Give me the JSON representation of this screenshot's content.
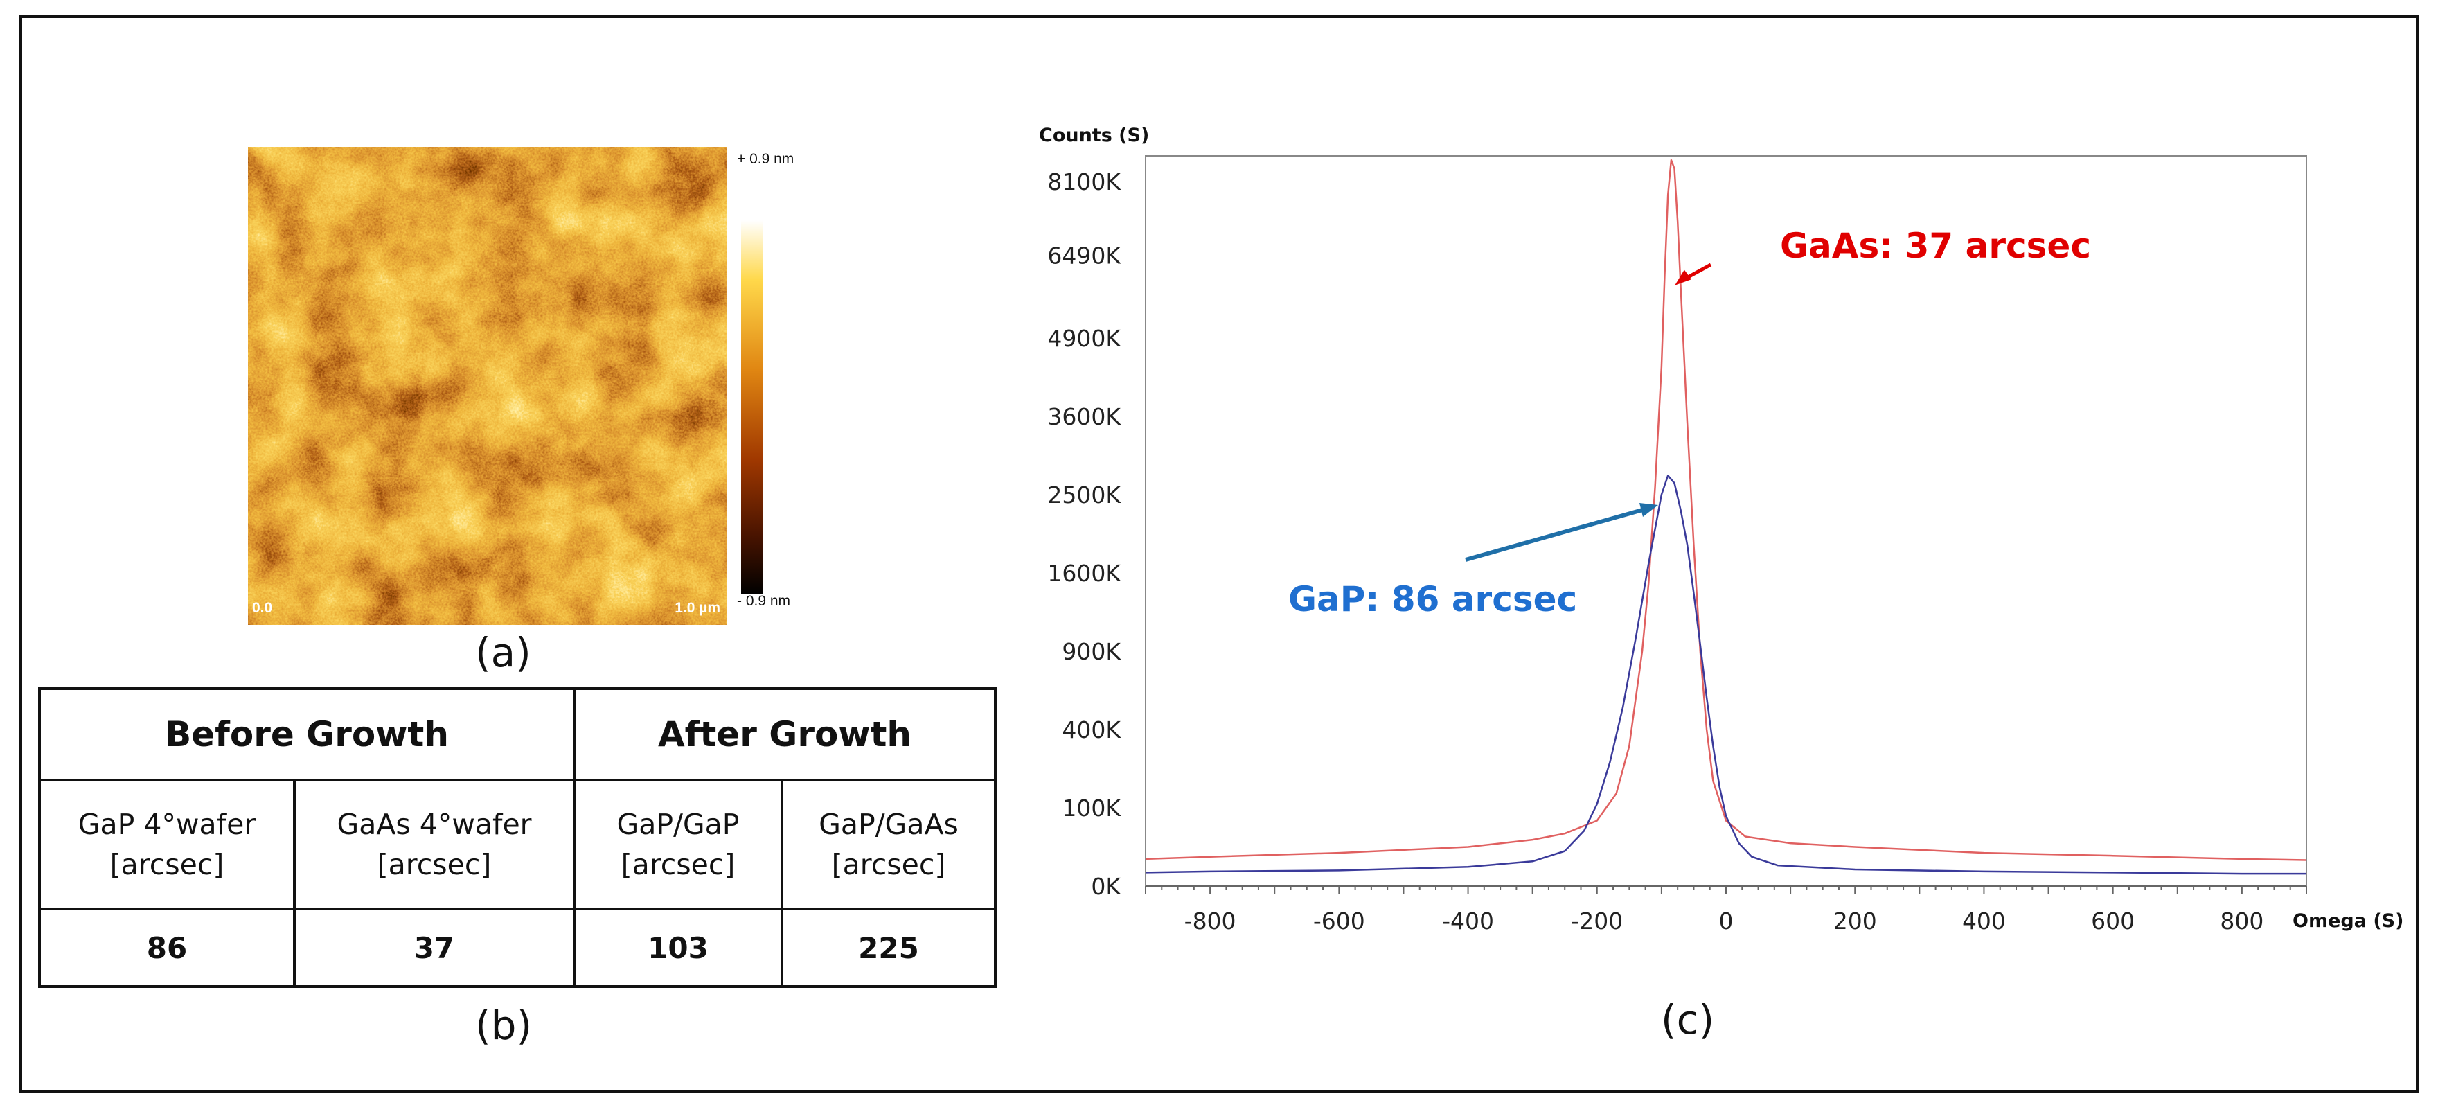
{
  "panels": {
    "a": "(a)",
    "b": "(b)",
    "c": "(c)"
  },
  "afm": {
    "scale_top": "+ 0.9 nm",
    "scale_bottom": "- 0.9 nm",
    "corner_origin": "0.0",
    "corner_size": "1.0 µm"
  },
  "table": {
    "group_headers": [
      "Before Growth",
      "After Growth"
    ],
    "columns": [
      {
        "line1": "GaP 4°wafer",
        "line2": "[arcsec]"
      },
      {
        "line1": "GaAs 4°wafer",
        "line2": "[arcsec]"
      },
      {
        "line1": "GaP/GaP",
        "line2": "[arcsec]"
      },
      {
        "line1": "GaP/GaAs",
        "line2": "[arcsec]"
      }
    ],
    "values": [
      "86",
      "37",
      "103",
      "225"
    ]
  },
  "chart_data": {
    "type": "line",
    "ylabel": "Counts (S)",
    "xlabel": "Omega (S)",
    "xlim": [
      -900,
      900
    ],
    "x_ticks": [
      "-800",
      "-600",
      "-400",
      "-200",
      "0",
      "200",
      "400",
      "600",
      "800"
    ],
    "x_tick_values": [
      -800,
      -600,
      -400,
      -200,
      0,
      200,
      400,
      600,
      800
    ],
    "y_ticks": [
      "0K",
      "100K",
      "400K",
      "900K",
      "1600K",
      "2500K",
      "3600K",
      "4900K",
      "6490K",
      "8100K"
    ],
    "y_tick_values": [
      0,
      100000,
      400000,
      900000,
      1600000,
      2500000,
      3600000,
      4900000,
      6490000,
      8100000
    ],
    "y_scale": "sqrt",
    "series": [
      {
        "name": "GaAs",
        "color": "#e06060",
        "x": [
          -900,
          -800,
          -600,
          -400,
          -300,
          -250,
          -200,
          -170,
          -150,
          -130,
          -120,
          -110,
          -100,
          -95,
          -90,
          -85,
          -80,
          -75,
          -70,
          -60,
          -50,
          -40,
          -30,
          -20,
          0,
          30,
          100,
          200,
          400,
          600,
          800,
          900
        ],
        "y": [
          12000,
          14000,
          18000,
          25000,
          35000,
          45000,
          70000,
          140000,
          320000,
          900000,
          1500000,
          2600000,
          4400000,
          6100000,
          7800000,
          8600000,
          8400000,
          7200000,
          5800000,
          3500000,
          1900000,
          900000,
          400000,
          180000,
          70000,
          40000,
          30000,
          25000,
          18000,
          15000,
          12000,
          11000
        ]
      },
      {
        "name": "GaP",
        "color": "#3a3a9a",
        "x": [
          -900,
          -800,
          -600,
          -400,
          -300,
          -250,
          -220,
          -200,
          -180,
          -160,
          -140,
          -120,
          -100,
          -90,
          -80,
          -70,
          -60,
          -50,
          -40,
          -30,
          -20,
          -10,
          0,
          20,
          40,
          80,
          200,
          400,
          600,
          800,
          900
        ],
        "y": [
          3000,
          3500,
          4000,
          6000,
          10000,
          20000,
          50000,
          110000,
          250000,
          520000,
          1000000,
          1700000,
          2500000,
          2750000,
          2650000,
          2300000,
          1900000,
          1400000,
          950000,
          580000,
          320000,
          160000,
          80000,
          30000,
          14000,
          7000,
          4500,
          3500,
          3000,
          2500,
          2500
        ]
      }
    ],
    "annotations": [
      {
        "text": "GaAs: 37 arcsec",
        "color": "#e00000"
      },
      {
        "text": "GaP: 86 arcsec",
        "color": "#1f6fd0"
      }
    ]
  }
}
